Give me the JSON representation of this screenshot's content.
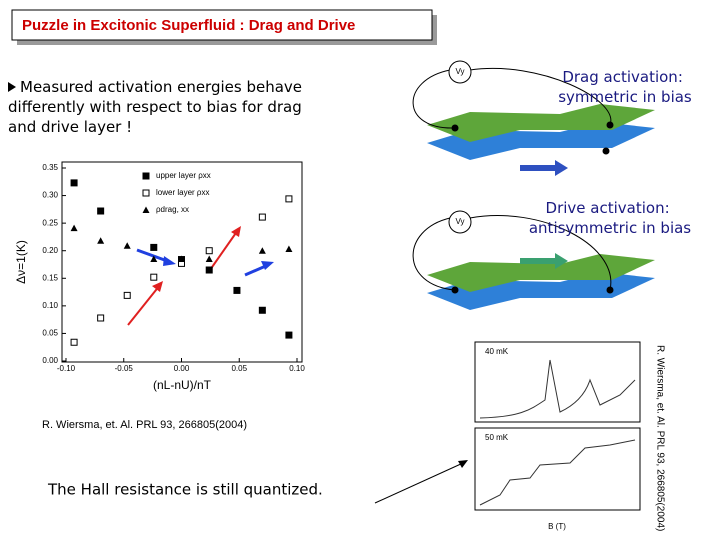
{
  "header": {
    "title": "Puzzle in Excitonic Superfluid : Drag and Drive"
  },
  "bullet": {
    "lines": [
      "Measured activation energies behave",
      "differently with respect to bias for drag",
      "and drive layer !"
    ]
  },
  "drag_panel": {
    "voltage": "Vy",
    "lines": [
      "Drag activation:",
      "symmetric in bias"
    ]
  },
  "drive_panel": {
    "voltage": "Vy",
    "lines": [
      "Drive activation:",
      "antisymmetric in bias"
    ]
  },
  "citation": "R. Wiersma, et. Al.  PRL 93, 266805(2004)",
  "side_citation": "R. Wiersma, et. Al. PRL 93, 266805(2004)",
  "hall_note": "The Hall resistance is still quantized.",
  "inset": {
    "labels": [
      "40 mK",
      "50 mK"
    ],
    "x_label": "B (T)"
  },
  "chart_data": {
    "type": "scatter",
    "x_label": "(nL-nU)/nT",
    "y_label": "Δν=1(K)",
    "xlim": [
      -0.1,
      0.1
    ],
    "xticks": [
      {
        "value": -0.1,
        "label": "-0.10"
      },
      -0.05,
      {
        "value": 0,
        "label": "0.00"
      },
      0.05,
      {
        "value": 0.1,
        "label": "0.10"
      }
    ],
    "ylim": [
      0,
      0.35
    ],
    "yticks": [
      {
        "value": 0,
        "label": "0.00"
      },
      0.05,
      {
        "value": 0.1,
        "label": "0.10"
      },
      0.15,
      {
        "value": 0.2,
        "label": "0.20"
      },
      0.25,
      {
        "value": 0.3,
        "label": "0.30"
      },
      0.35
    ],
    "series": [
      {
        "name": "upper layer ρxx",
        "color": "#000000",
        "marker": "square-filled",
        "x": [
          -0.093,
          -0.07,
          -0.024,
          0,
          0.024,
          0.048,
          0.07,
          0.093
        ],
        "values": [
          0.323,
          0.272,
          0.206,
          0.184,
          0.165,
          0.128,
          0.092,
          0.047
        ]
      },
      {
        "name": "lower layer ρxx",
        "color": "#000000",
        "marker": "square-open",
        "x": [
          -0.093,
          -0.07,
          -0.047,
          -0.024,
          0,
          0.024,
          0.07,
          0.093
        ],
        "values": [
          0.034,
          0.078,
          0.119,
          0.152,
          0.177,
          0.2,
          0.261,
          0.294
        ]
      },
      {
        "name": "ρdrag, xx",
        "color": "#000000",
        "marker": "triangle",
        "x": [
          -0.093,
          -0.07,
          -0.047,
          -0.024,
          0,
          0.024,
          0.07,
          0.093
        ],
        "values": [
          0.241,
          0.218,
          0.209,
          0.185,
          0.185,
          0.185,
          0.2,
          0.203
        ]
      }
    ]
  }
}
